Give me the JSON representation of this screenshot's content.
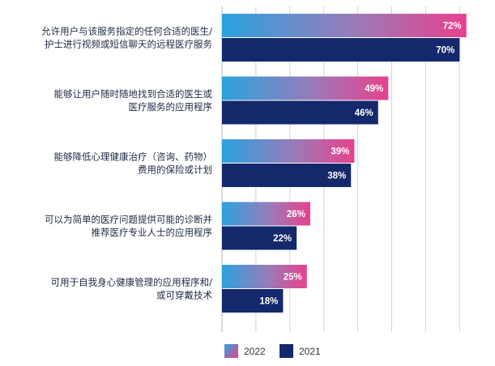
{
  "chart_data": {
    "type": "bar",
    "orientation": "horizontal",
    "categories": [
      [
        "允许用户与该服务指定的任何合适的医生/",
        "护士进行视频或短信聊天的远程医疗服务"
      ],
      [
        "能够让用户随时随地找到合适的医生或",
        "医疗服务的应用程序"
      ],
      [
        "能够降低心理健康治疗（咨询、药物）",
        "费用的保险或计划"
      ],
      [
        "可以为简单的医疗问题提供可能的诊断并",
        "推荐医疗专业人士的应用程序"
      ],
      [
        "可用于自我身心健康管理的应用程序和/",
        "或可穿戴技术"
      ]
    ],
    "series": [
      {
        "name": "2022",
        "values": [
          72,
          49,
          39,
          26,
          25
        ],
        "value_labels": [
          "72%",
          "49%",
          "39%",
          "26%",
          "25%"
        ]
      },
      {
        "name": "2021",
        "values": [
          70,
          46,
          38,
          22,
          18
        ],
        "value_labels": [
          "70%",
          "46%",
          "38%",
          "22%",
          "18%"
        ]
      }
    ],
    "xlim": [
      0,
      75
    ],
    "grid": true,
    "legend_position": "bottom",
    "colors": {
      "2022_gradient_start": "#2aa3df",
      "2022_gradient_end": "#e8418d",
      "2021": "#14286b",
      "grid": "#d0d4dc",
      "axis": "#b0b4bc",
      "label_text": "#1f2a44"
    }
  }
}
